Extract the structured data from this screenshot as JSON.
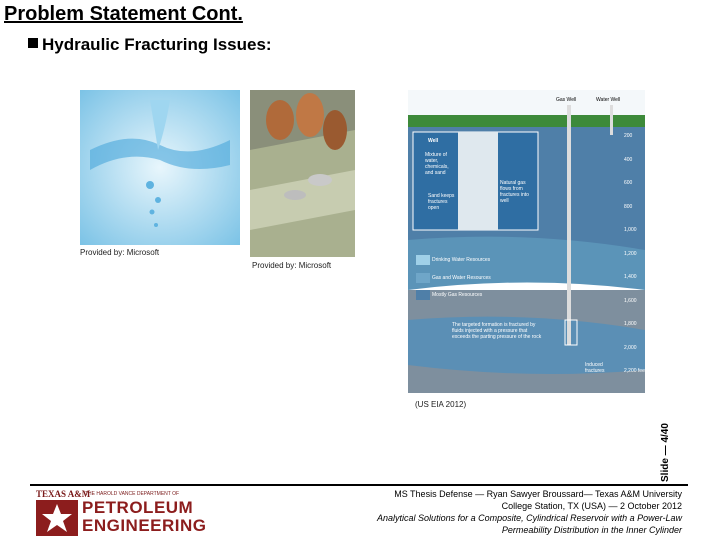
{
  "header": {
    "title": "Problem Statement Cont.",
    "bullet": "Hydraulic Fracturing Issues:"
  },
  "images": [
    {
      "caption": "Provided by: Microsoft"
    },
    {
      "caption": "Provided by: Microsoft"
    },
    {
      "caption": "(US EIA 2012)"
    }
  ],
  "diagram": {
    "gas_well": "Gas Well",
    "water_well": "Water Well",
    "well": "Well",
    "mixture": "Mixture of water, chemicals, and sand",
    "natural_gas": "Natural gas flows from fractures into well",
    "sand": "Sand keeps fractures open",
    "drinking": "Drinking Water Resources",
    "gas_water": "Gas and Water Resources",
    "mostly_gas": "Mostly Gas Resources",
    "targeted": "The targeted formation is fractured by fluids injected with a pressure that exceeds the parting pressure of the rock",
    "induced": "Induced fractures",
    "depths": [
      "200",
      "400",
      "600",
      "800",
      "1,000",
      "1,200",
      "1,400",
      "1,600",
      "1,800",
      "2,000",
      "2,200 feet"
    ]
  },
  "footer": {
    "lines": [
      "MS Thesis Defense — Ryan Sawyer Broussard— Texas A&M University",
      "College Station, TX (USA) — 2 October 2012",
      "Analytical Solutions for a Composite, Cylindrical Reservoir with a Power-Law",
      "Permeability Distribution in the Inner Cylinder"
    ],
    "slide": "Slide — 4/40",
    "logo": {
      "university": "TEXAS A&M",
      "department": "THE HAROLD VANCE DEPARTMENT OF",
      "name_1": "PETROLEUM",
      "name_2": "ENGINEERING"
    }
  }
}
